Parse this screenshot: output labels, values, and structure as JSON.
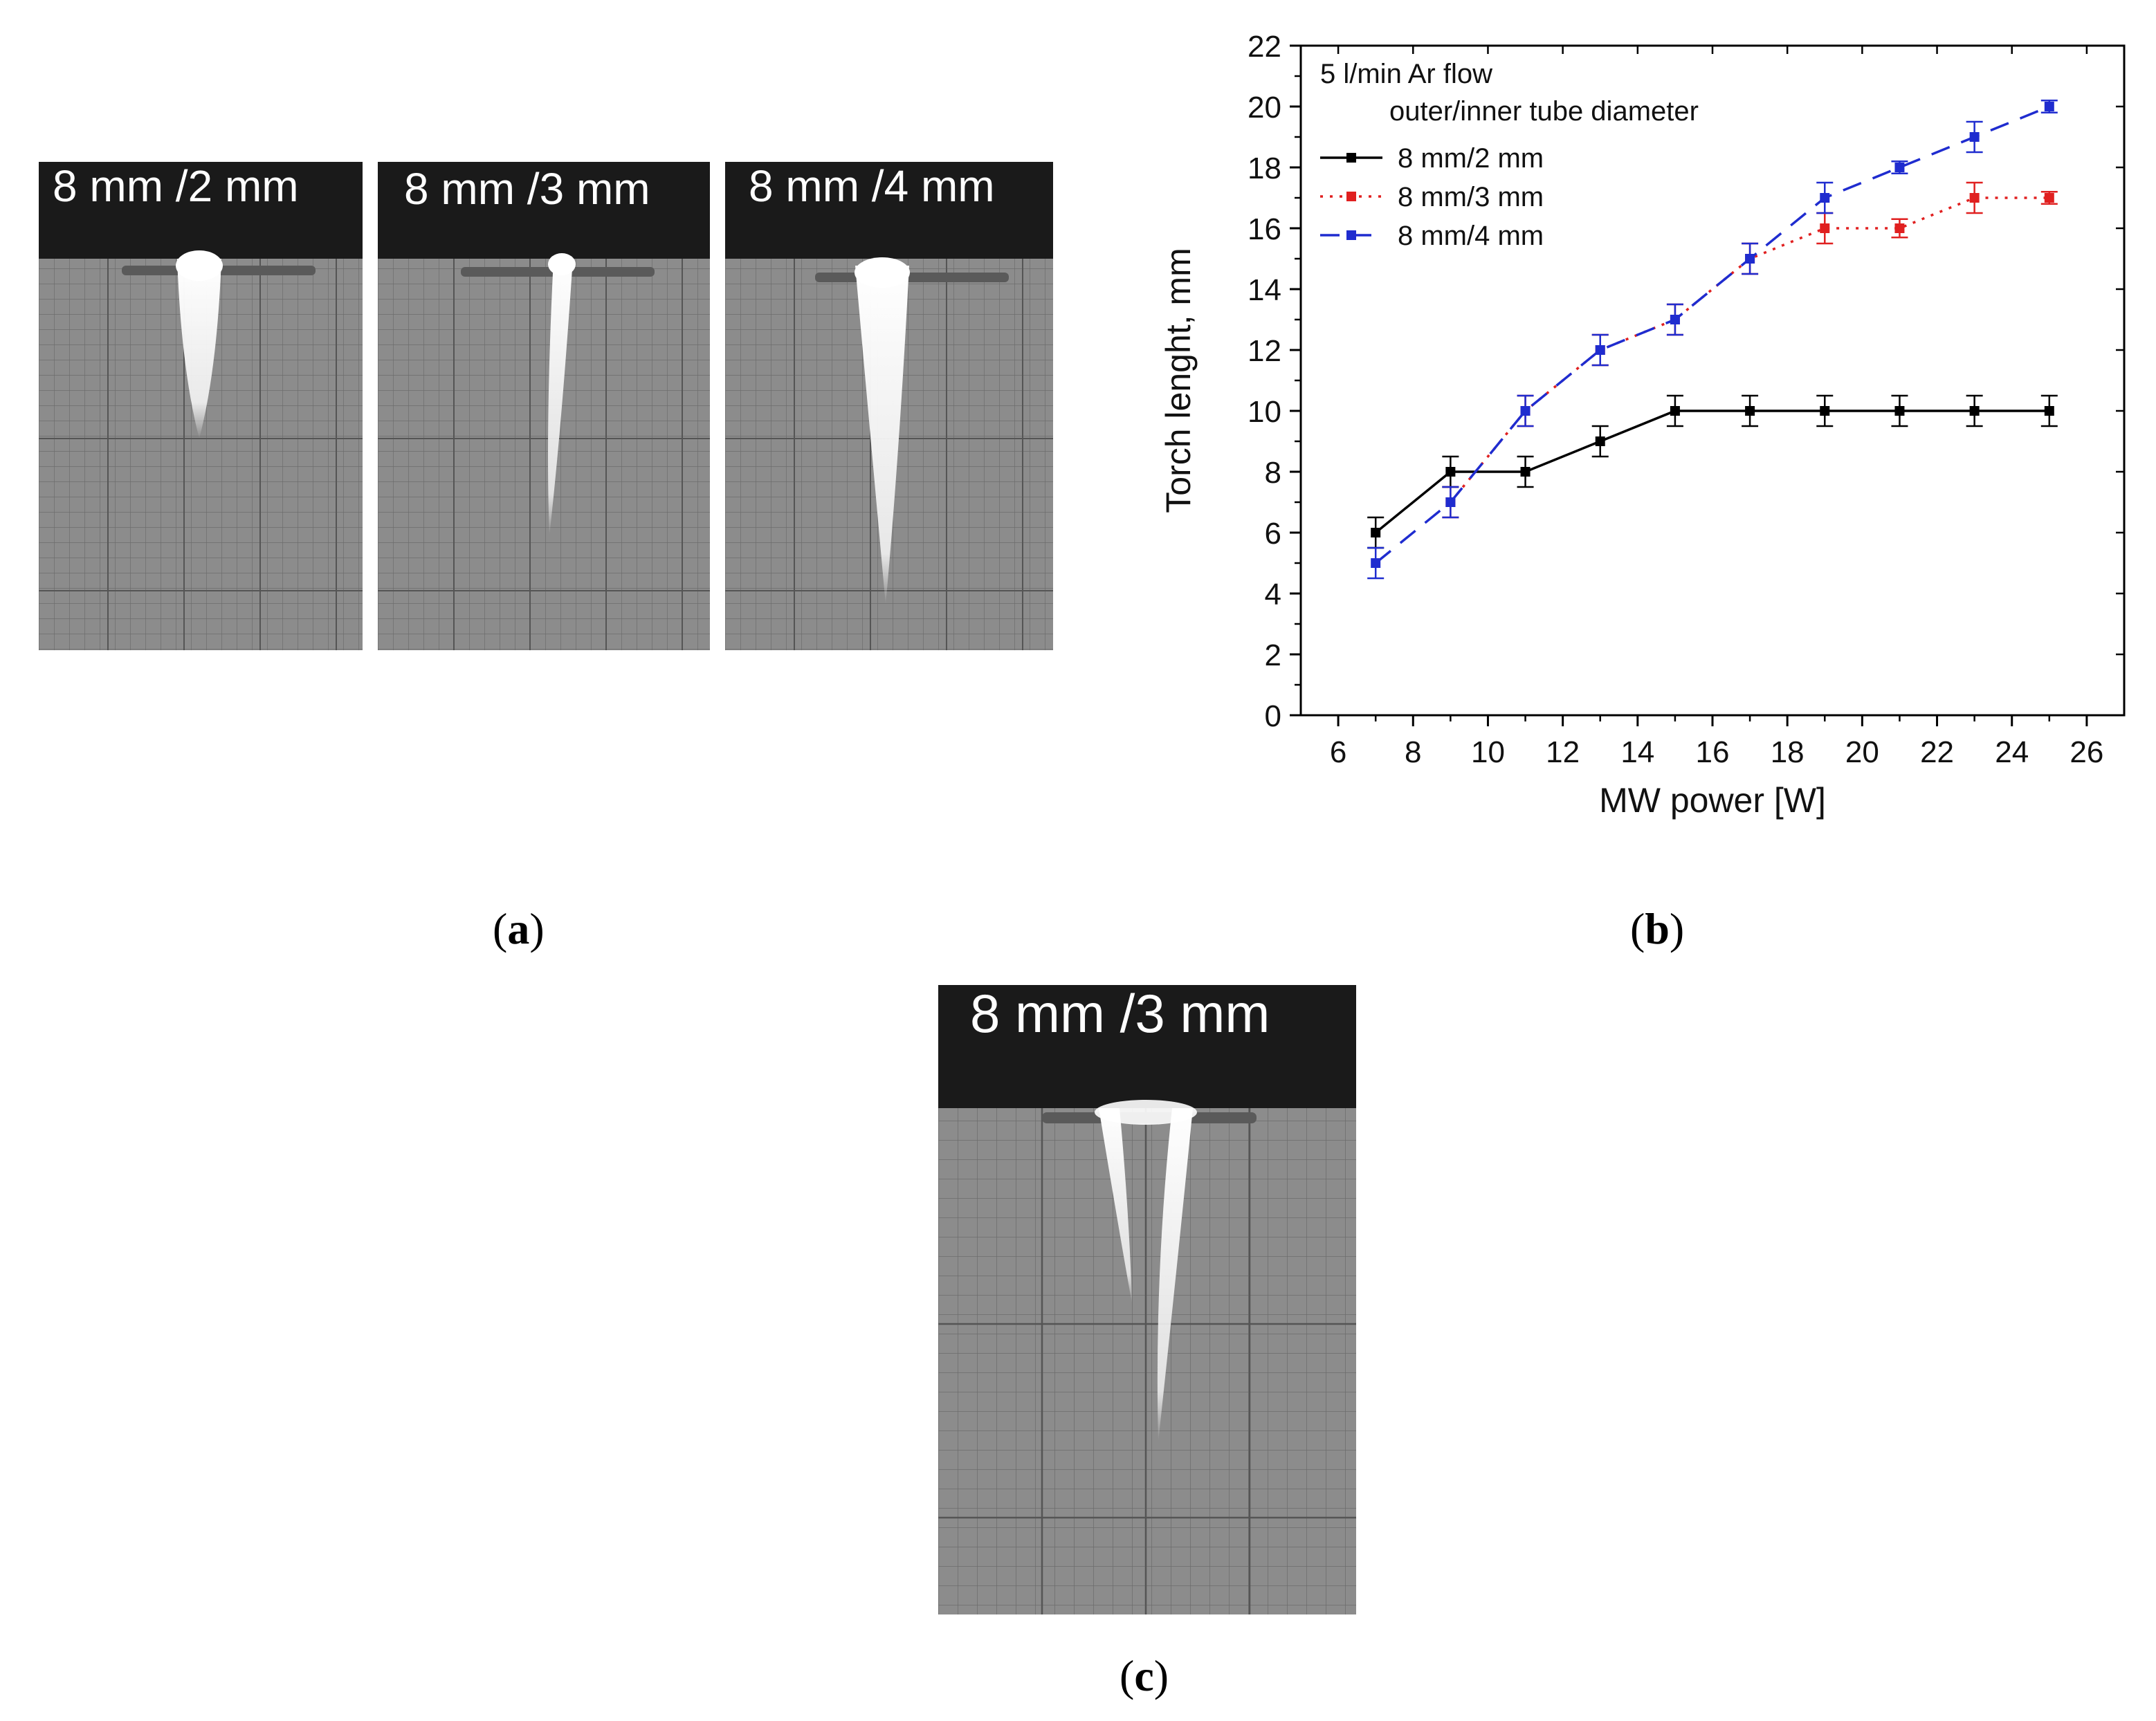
{
  "panels": {
    "a": {
      "caption_open": "(",
      "caption_letter": "a",
      "caption_close": ")",
      "photos": [
        {
          "label": "8 mm /2 mm"
        },
        {
          "label": "8 mm /3 mm"
        },
        {
          "label": "8 mm /4 mm"
        }
      ]
    },
    "b": {
      "caption_open": "(",
      "caption_letter": "b",
      "caption_close": ")"
    },
    "c": {
      "caption_open": "(",
      "caption_letter": "c",
      "caption_close": ")",
      "photo": {
        "label": "8 mm /3 mm"
      }
    }
  },
  "chart_data": {
    "type": "line",
    "title": "",
    "xlabel": "MW power [W]",
    "ylabel": "Torch lenght, mm",
    "xlim": [
      5,
      27
    ],
    "ylim": [
      0,
      22
    ],
    "xticks": [
      6,
      8,
      10,
      12,
      14,
      16,
      18,
      20,
      22,
      24,
      26
    ],
    "yticks": [
      0,
      2,
      4,
      6,
      8,
      10,
      12,
      14,
      16,
      18,
      20,
      22
    ],
    "legend_title_1": "5 l/min Ar flow",
    "legend_title_2": "outer/inner tube diameter",
    "legend_placement": "top-left",
    "series": [
      {
        "name": "8 mm/2 mm",
        "color": "#000000",
        "style": "solid",
        "x": [
          7,
          9,
          11,
          13,
          15,
          17,
          19,
          21,
          23,
          25
        ],
        "y": [
          6,
          8,
          8,
          9,
          10,
          10,
          10,
          10,
          10,
          10
        ],
        "err": [
          0.5,
          0.5,
          0.5,
          0.5,
          0.5,
          0.5,
          0.5,
          0.5,
          0.5,
          0.5
        ]
      },
      {
        "name": "8 mm/3 mm",
        "color": "#e02020",
        "style": "dotted",
        "x": [
          9,
          11,
          13,
          15,
          17,
          19,
          21,
          23,
          25
        ],
        "y": [
          7,
          10,
          12,
          13,
          15,
          16,
          16,
          17,
          17
        ],
        "err": [
          0.5,
          0.5,
          0.5,
          0.5,
          0.5,
          0.5,
          0.3,
          0.5,
          0.2
        ]
      },
      {
        "name": "8 mm/4 mm",
        "color": "#1f2ccf",
        "style": "dashed",
        "x": [
          7,
          9,
          11,
          13,
          15,
          17,
          19,
          21,
          23,
          25
        ],
        "y": [
          5,
          7,
          10,
          12,
          13,
          15,
          17,
          18,
          19,
          20
        ],
        "err": [
          0.5,
          0.5,
          0.5,
          0.5,
          0.5,
          0.5,
          0.5,
          0.2,
          0.5,
          0.2
        ]
      }
    ]
  }
}
